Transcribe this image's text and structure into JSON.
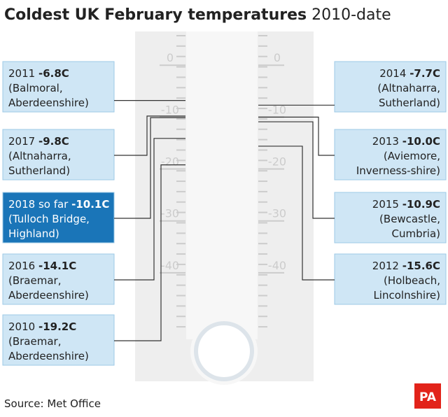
{
  "chart_data": {
    "type": "thermometer",
    "title": "Coldest UK February temperatures",
    "subtitle": "2010-date",
    "categories": [
      "2011",
      "2017",
      "2018 so far",
      "2016",
      "2010",
      "2014",
      "2013",
      "2015",
      "2012"
    ],
    "values": [
      -6.8,
      -9.8,
      -10.1,
      -14.1,
      -19.2,
      -7.7,
      -10.0,
      -10.9,
      -15.6
    ],
    "value_labels": [
      "-6.8C",
      "-9.8C",
      "-10.1C",
      "-14.1C",
      "-19.2C",
      "-7.7C",
      "-10.0C",
      "-10.9C",
      "-15.6C"
    ],
    "places": [
      [
        "(Balmoral,",
        "Aberdeenshire)"
      ],
      [
        "(Altnaharra,",
        "Sutherland)"
      ],
      [
        "(Tulloch Bridge,",
        "Highland)"
      ],
      [
        "(Braemar,",
        "Aberdeenshire)"
      ],
      [
        "(Braemar,",
        "Aberdeenshire)"
      ],
      [
        "(Altnaharra,",
        "Sutherland)"
      ],
      [
        "(Aviemore,",
        "Inverness-shire)"
      ],
      [
        "(Bewcastle,",
        "Cumbria)"
      ],
      [
        "(Holbeach,",
        "Lincolnshire)"
      ]
    ],
    "ylim": [
      -50.8,
      6.5
    ],
    "yticks": [
      0,
      -10,
      -20,
      -30,
      -40
    ],
    "color": "#cfe6f5",
    "highlight": 2,
    "highlight_color": "#1a75b8",
    "source": "Source: Met Office",
    "logo": "PA"
  }
}
